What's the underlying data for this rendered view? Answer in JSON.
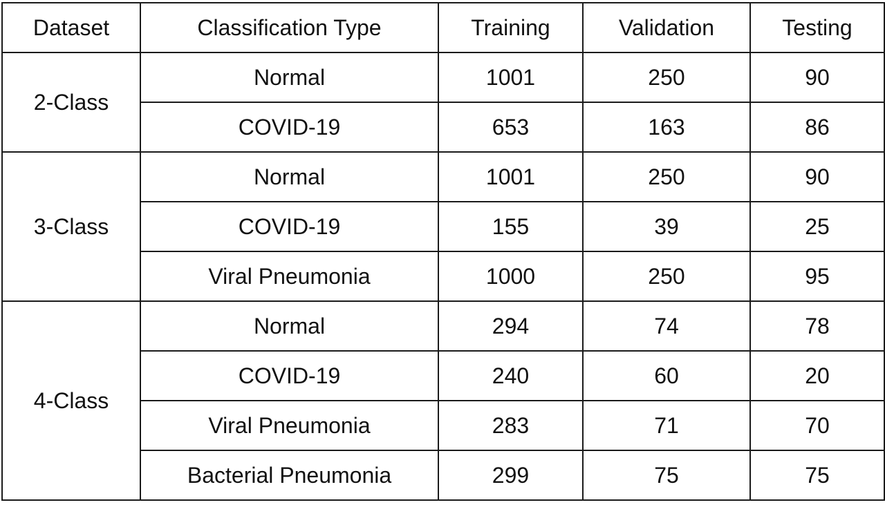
{
  "table": {
    "headers": {
      "dataset": "Dataset",
      "classification_type": "Classification Type",
      "training": "Training",
      "validation": "Validation",
      "testing": "Testing"
    },
    "groups": [
      {
        "label": "2-Class",
        "rows": [
          {
            "type": "Normal",
            "training": "1001",
            "validation": "250",
            "testing": "90"
          },
          {
            "type": "COVID-19",
            "training": "653",
            "validation": "163",
            "testing": "86"
          }
        ]
      },
      {
        "label": "3-Class",
        "rows": [
          {
            "type": "Normal",
            "training": "1001",
            "validation": "250",
            "testing": "90"
          },
          {
            "type": "COVID-19",
            "training": "155",
            "validation": "39",
            "testing": "25"
          },
          {
            "type": "Viral Pneumonia",
            "training": "1000",
            "validation": "250",
            "testing": "95"
          }
        ]
      },
      {
        "label": "4-Class",
        "rows": [
          {
            "type": "Normal",
            "training": "294",
            "validation": "74",
            "testing": "78"
          },
          {
            "type": "COVID-19",
            "training": "240",
            "validation": "60",
            "testing": "20"
          },
          {
            "type": "Viral Pneumonia",
            "training": "283",
            "validation": "71",
            "testing": "70"
          },
          {
            "type": "Bacterial Pneumonia",
            "training": "299",
            "validation": "75",
            "testing": "75"
          }
        ]
      }
    ]
  }
}
